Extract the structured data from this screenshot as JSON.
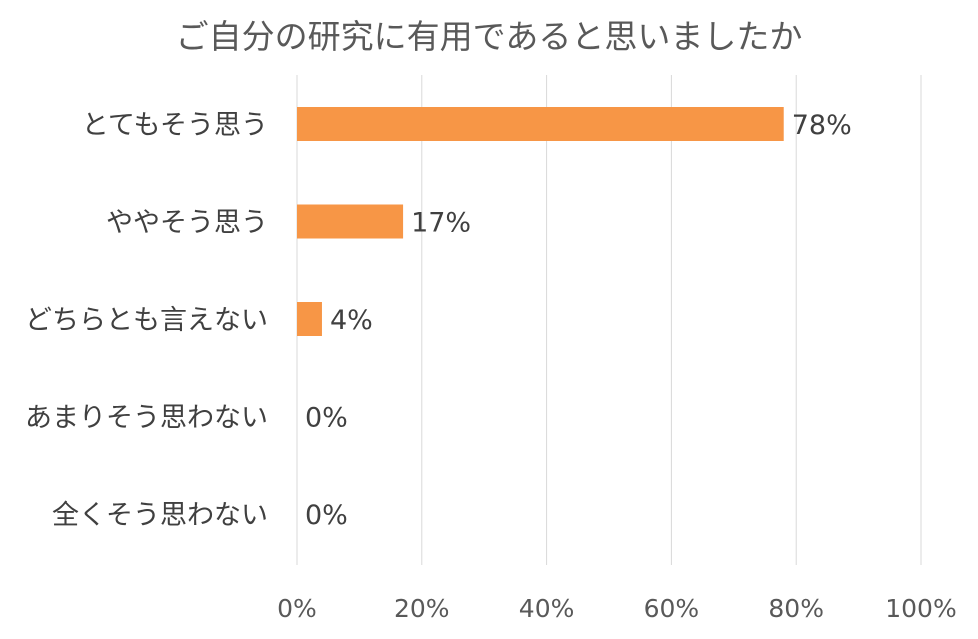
{
  "chart_data": {
    "type": "bar",
    "orientation": "horizontal",
    "title": "ご自分の研究に有用であると思いましたか",
    "categories": [
      "とてもそう思う",
      "ややそう思う",
      "どちらとも言えない",
      "あまりそう思わない",
      "全くそう思わない"
    ],
    "values": [
      78,
      17,
      4,
      0,
      0
    ],
    "data_labels": [
      "78%",
      "17%",
      "4%",
      "0%",
      "0%"
    ],
    "xlim": [
      0,
      100
    ],
    "x_ticks": [
      0,
      20,
      40,
      60,
      80,
      100
    ],
    "x_tick_labels": [
      "0%",
      "20%",
      "40%",
      "60%",
      "80%",
      "100%"
    ],
    "grid": true,
    "legend": "none",
    "bar_color": "#F79646"
  }
}
